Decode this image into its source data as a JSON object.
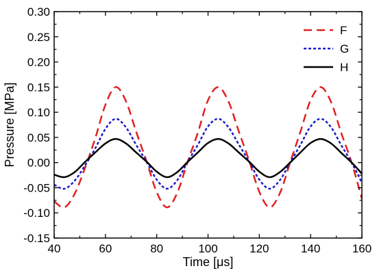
{
  "chart_data": {
    "type": "line",
    "title": "",
    "xlabel": "Time [μs]",
    "ylabel": "Pressure [MPa]",
    "xlim": [
      40,
      160
    ],
    "ylim": [
      -0.15,
      0.3
    ],
    "xticks": [
      40,
      60,
      80,
      100,
      120,
      140,
      160
    ],
    "yticks": [
      -0.15,
      -0.1,
      -0.05,
      0.0,
      0.05,
      0.1,
      0.15,
      0.2,
      0.25,
      0.3
    ],
    "xtick_labels": [
      "40",
      "60",
      "80",
      "100",
      "120",
      "140",
      "160"
    ],
    "ytick_labels": [
      "-0.15",
      "-0.10",
      "-0.05",
      "0.00",
      "0.05",
      "0.10",
      "0.15",
      "0.20",
      "0.25",
      "0.30"
    ],
    "grid": false,
    "legend_position": "top-right",
    "x": [
      40,
      44,
      48,
      52,
      56,
      60,
      64,
      68,
      72,
      76,
      80,
      84,
      88,
      92,
      96,
      100,
      104,
      108,
      112,
      116,
      120,
      124,
      128,
      132,
      136,
      140,
      144,
      148,
      152,
      156,
      160
    ],
    "series": [
      {
        "name": "F",
        "color": "#e02020",
        "style": "dashed",
        "values": [
          -0.077,
          -0.089,
          -0.062,
          -0.011,
          0.048,
          0.115,
          0.15,
          0.122,
          0.061,
          0.003,
          -0.059,
          -0.089,
          -0.06,
          0.001,
          0.059,
          0.124,
          0.15,
          0.121,
          0.062,
          0.004,
          -0.058,
          -0.089,
          -0.061,
          0.0,
          0.061,
          0.124,
          0.15,
          0.12,
          0.058,
          0.0,
          -0.072
        ]
      },
      {
        "name": "G",
        "color": "#1a1acc",
        "style": "dotted",
        "values": [
          -0.044,
          -0.052,
          -0.036,
          -0.006,
          0.028,
          0.067,
          0.087,
          0.07,
          0.035,
          0.002,
          -0.034,
          -0.052,
          -0.035,
          0.001,
          0.035,
          0.072,
          0.087,
          0.07,
          0.036,
          0.002,
          -0.034,
          -0.052,
          -0.035,
          0.0,
          0.035,
          0.072,
          0.087,
          0.07,
          0.034,
          0.0,
          -0.04
        ]
      },
      {
        "name": "H",
        "color": "#000000",
        "style": "solid",
        "values": [
          -0.024,
          -0.029,
          -0.019,
          0.001,
          0.02,
          0.038,
          0.047,
          0.038,
          0.02,
          0.002,
          -0.018,
          -0.029,
          -0.019,
          0.001,
          0.02,
          0.039,
          0.047,
          0.038,
          0.02,
          0.002,
          -0.018,
          -0.029,
          -0.019,
          0.0,
          0.02,
          0.039,
          0.047,
          0.038,
          0.019,
          0.0,
          -0.022
        ]
      }
    ]
  }
}
